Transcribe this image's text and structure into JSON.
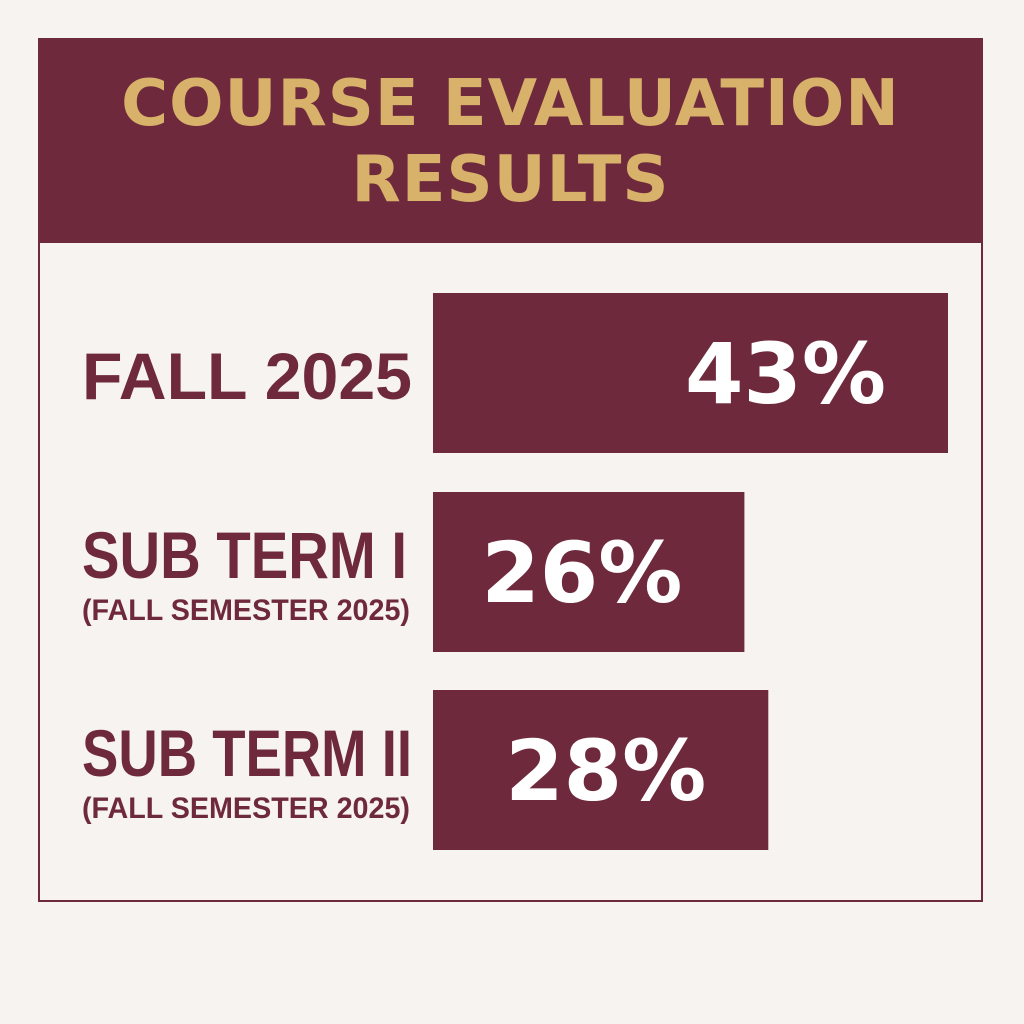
{
  "chart_data": {
    "type": "bar",
    "title": "COURSE EVALUATION RESULTS",
    "categories": [
      {
        "label": "FALL 2025",
        "sublabel": ""
      },
      {
        "label": "SUB TERM I",
        "sublabel": "(FALL SEMESTER 2025)"
      },
      {
        "label": "SUB TERM II",
        "sublabel": "(FALL SEMESTER 2025)"
      }
    ],
    "values": [
      43,
      26,
      28
    ],
    "value_suffix": "%",
    "orientation": "horizontal",
    "grid": false,
    "legend": "none"
  },
  "colors": {
    "primary": "#6e2a3c",
    "accent": "#d8b26a",
    "background": "#f7f3f0",
    "value_text": "#ffffff"
  }
}
